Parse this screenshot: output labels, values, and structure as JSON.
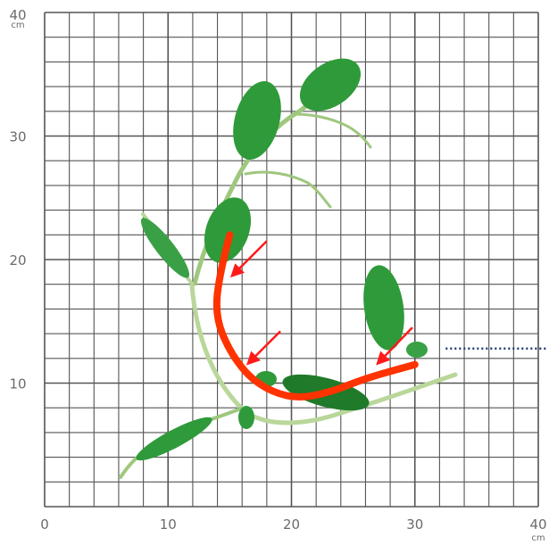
{
  "axes": {
    "unit": "cm",
    "x_range": [
      0,
      40
    ],
    "y_range": [
      0,
      40
    ],
    "x_ticks": [
      "0",
      "10",
      "20",
      "30",
      "40"
    ],
    "y_ticks": [
      "10",
      "20",
      "30",
      "40"
    ],
    "grid_step": 2
  },
  "colors": {
    "grid": "#555555",
    "leaf": "#2f9a3a",
    "leaf_dark": "#1f7a2a",
    "stem": "#b9d79a",
    "highlight_curve": "#ff3300",
    "arrow": "#ff1a1a",
    "guide_line": "#1f3a6a"
  },
  "curve_points_cm": [
    [
      15,
      22
    ],
    [
      14.2,
      19
    ],
    [
      13.8,
      15.5
    ],
    [
      15,
      12.5
    ],
    [
      17,
      10
    ],
    [
      20,
      8.7
    ],
    [
      23,
      9.2
    ],
    [
      26,
      10.4
    ],
    [
      30,
      11.5
    ]
  ],
  "arrows_cm": [
    {
      "from": [
        18,
        21.5
      ],
      "to": [
        15.2,
        18.7
      ]
    },
    {
      "from": [
        19.1,
        14.2
      ],
      "to": [
        16.5,
        11.6
      ]
    },
    {
      "from": [
        29.8,
        14.5
      ],
      "to": [
        27,
        11.6
      ]
    }
  ],
  "guide_line_cm": {
    "y": 12.8,
    "x_start": 32.5,
    "x_end": 41
  }
}
